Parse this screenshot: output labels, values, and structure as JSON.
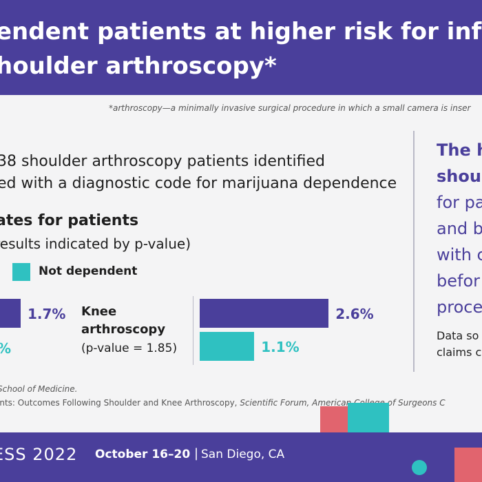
{
  "header": {
    "title_line1": "endent patients at higher risk for infectio",
    "title_line2": "houlder arthroscopy*"
  },
  "footnote": "*arthroscopy—a minimally invasive surgical procedure in which a small camera is inser",
  "intro": {
    "line1": "38 shoulder arthroscopy patients identified",
    "line2": "ed with a diagnostic code for marijuana dependence"
  },
  "rates": {
    "title": "ates for patients",
    "subtitle": "results indicated by p-value)"
  },
  "legend": {
    "not_dependent": "Not dependent"
  },
  "colors": {
    "dependent": "#4a3f9b",
    "not_dependent": "#2fc1c1",
    "accent_pink": "#e1646e"
  },
  "chart_data": {
    "type": "bar",
    "orientation": "horizontal",
    "series": [
      {
        "name": "",
        "values": [
          1.7,
          2.6
        ]
      },
      {
        "name": "Not dependent",
        "values": [
          null,
          1.1
        ]
      }
    ],
    "categories": [
      "",
      "Knee arthroscopy"
    ],
    "value_labels": [
      [
        "1.7%",
        "%"
      ],
      [
        "2.6%",
        "1.1%"
      ]
    ],
    "knee": {
      "name_line1": "Knee",
      "name_line2": "arthroscopy",
      "p_value": "(p-value = 1.85)"
    },
    "unit": "%"
  },
  "right_panel": {
    "bold1": "The h",
    "bold2": "shoul",
    "line3": "for pa",
    "line4": "and b",
    "line5": "with c",
    "line6": "befor",
    "line7": "proce",
    "small1": "Data so",
    "small2": "claims c"
  },
  "source": {
    "line1": "School of Medicine.",
    "line2_plain": "ints: Outcomes Following Shoulder and Knee Arthroscopy, ",
    "line2_italic": "Scientific Forum, American College of Surgeons C"
  },
  "footer": {
    "brand": "ESS 2022",
    "dates": "October 16–20",
    "separator": "|",
    "place": "San Diego, CA"
  }
}
